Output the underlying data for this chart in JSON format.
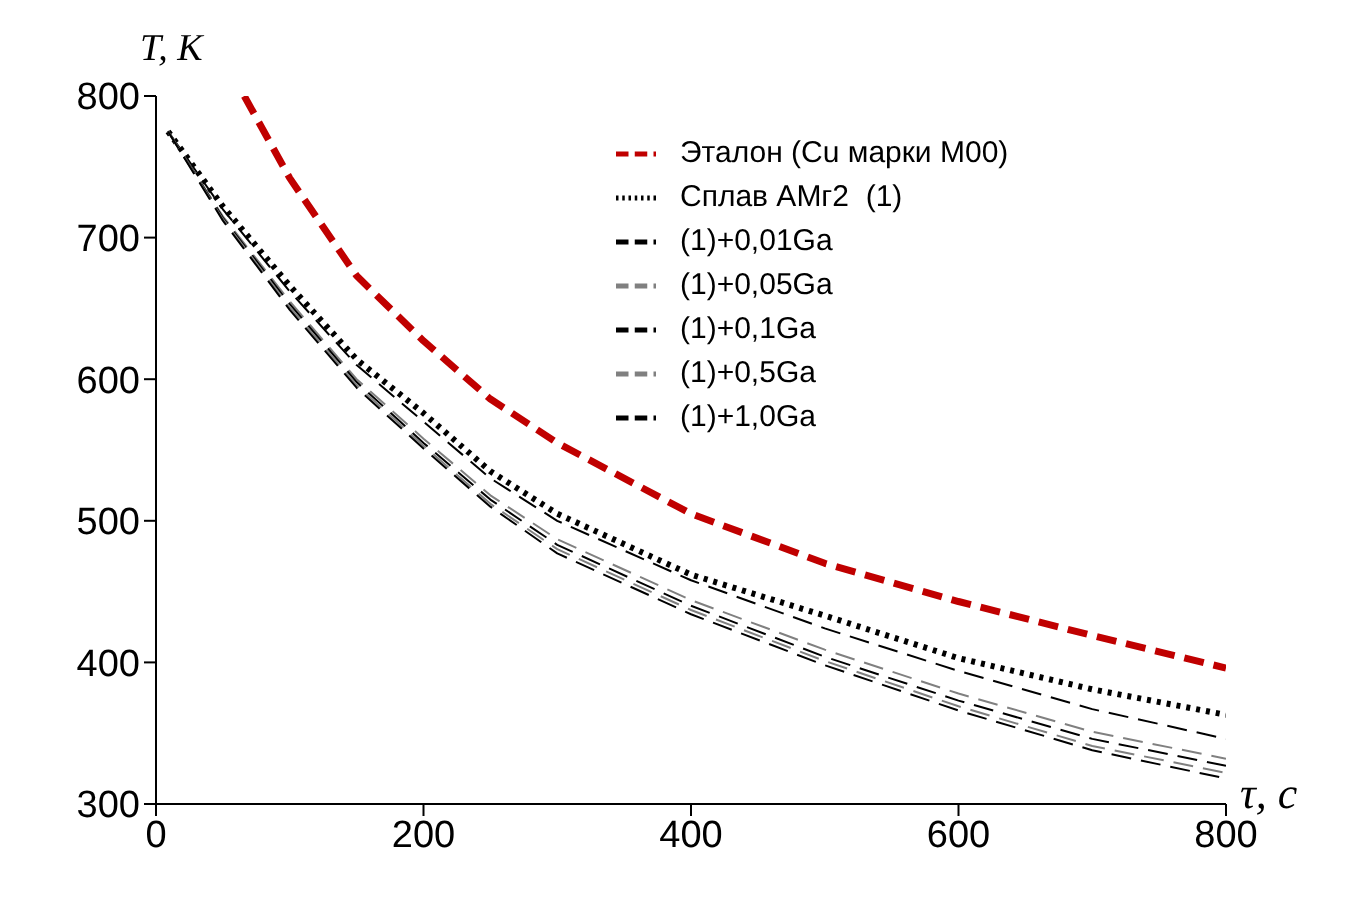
{
  "chart_data": {
    "type": "line",
    "xlabel": "τ, c",
    "ylabel": "T, K",
    "xlim": [
      0,
      800
    ],
    "ylim": [
      300,
      800
    ],
    "xticks": [
      0,
      200,
      400,
      600,
      800
    ],
    "yticks": [
      300,
      400,
      500,
      600,
      700,
      800
    ],
    "grid": false,
    "legend": "top right",
    "marker": "none",
    "x": [
      9,
      50,
      100,
      150,
      200,
      250,
      300,
      400,
      500,
      600,
      700,
      800
    ],
    "series": [
      {
        "name": "Эталон (Cu марки М00)",
        "color": "#c00000",
        "line_style": "dashed",
        "x": [
          66,
          100,
          150,
          200,
          250,
          300,
          400,
          500,
          600,
          700,
          800
        ],
        "values": [
          800,
          742,
          673,
          627,
          586,
          555,
          505,
          470,
          443,
          419,
          396
        ]
      },
      {
        "name": "Сплав АМг2  (1)",
        "color": "#000000",
        "line_style": "dotted",
        "values": [
          775,
          722,
          666,
          614,
          576,
          535,
          505,
          462,
          433,
          403,
          381,
          363
        ]
      },
      {
        "name": "(1)+0,01Ga",
        "color": "#000000",
        "line_style": "dashed",
        "values": [
          775,
          720,
          662,
          610,
          570,
          530,
          500,
          458,
          424,
          394,
          367,
          346
        ]
      },
      {
        "name": "(1)+0,05Ga",
        "color": "#808080",
        "line_style": "dashed",
        "values": [
          775,
          715,
          655,
          600,
          558,
          518,
          487,
          444,
          409,
          378,
          351,
          332
        ]
      },
      {
        "name": "(1)+0,1Ga",
        "color": "#000000",
        "line_style": "dashed",
        "values": [
          775,
          714,
          653,
          598,
          555,
          515,
          483,
          440,
          404,
          373,
          346,
          327
        ]
      },
      {
        "name": "(1)+0,5Ga",
        "color": "#808080",
        "line_style": "dashed",
        "values": [
          775,
          713,
          651,
          596,
          553,
          512,
          480,
          437,
          401,
          369,
          341,
          322
        ]
      },
      {
        "name": "(1)+1,0Ga",
        "color": "#000000",
        "line_style": "dashed",
        "values": [
          775,
          712,
          649,
          594,
          551,
          510,
          477,
          434,
          398,
          366,
          338,
          318
        ]
      }
    ]
  }
}
